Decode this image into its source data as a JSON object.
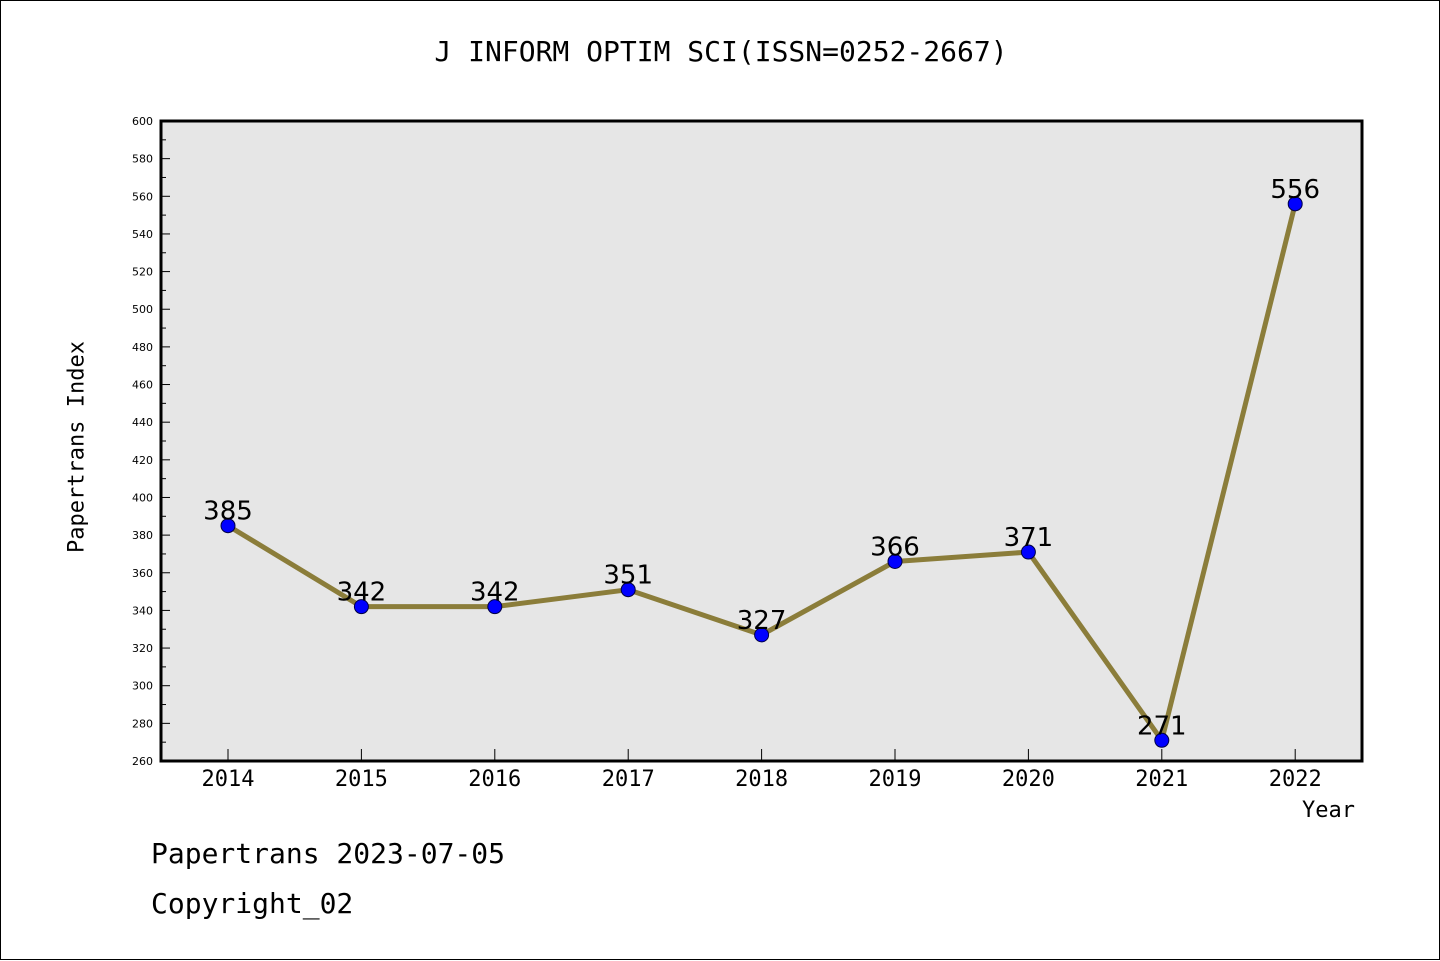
{
  "chart_data": {
    "type": "line",
    "title": "J INFORM OPTIM SCI(ISSN=0252-2667)",
    "xlabel": "Year",
    "ylabel": "Papertrans Index",
    "categories": [
      "2014",
      "2015",
      "2016",
      "2017",
      "2018",
      "2019",
      "2020",
      "2021",
      "2022"
    ],
    "series": [
      {
        "values": [
          385,
          342,
          342,
          351,
          327,
          366,
          371,
          271,
          556
        ]
      }
    ],
    "data_labels": [
      "385",
      "342",
      "342",
      "351",
      "327",
      "366",
      "371",
      "271",
      "556"
    ],
    "ylim": [
      260,
      600
    ],
    "y_ticks": [
      "260",
      "280",
      "300",
      "320",
      "340",
      "360",
      "380",
      "400",
      "420",
      "440",
      "460",
      "480",
      "500",
      "520",
      "540",
      "560",
      "580",
      "600"
    ],
    "grid": false,
    "colors": {
      "line": "#8b7d3a",
      "marker": "#0000ff",
      "plot_background": "#e6e6e6",
      "frame": "#000000"
    }
  },
  "footer": {
    "date_text": "Papertrans 2023-07-05",
    "copyright_text": "Copyright_02"
  }
}
